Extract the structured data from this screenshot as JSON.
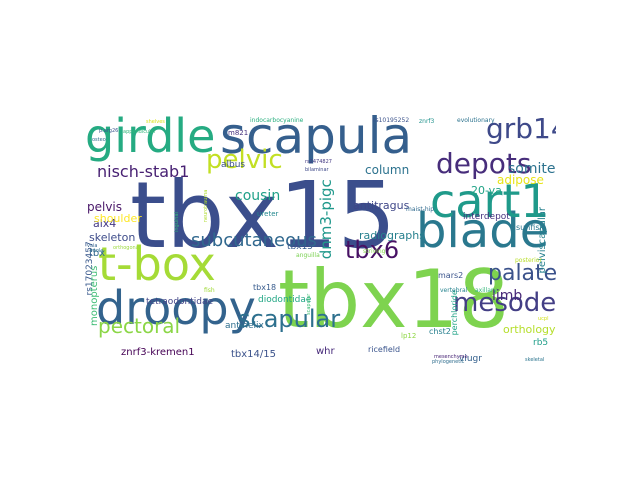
{
  "wordcloud": {
    "words": [
      {
        "text": "tbx15",
        "color": "#3b4e8c"
      },
      {
        "text": "tbx18",
        "color": "#7ed34f"
      },
      {
        "text": "scapula",
        "color": "#355f8d"
      },
      {
        "text": "blade",
        "color": "#2a788e"
      },
      {
        "text": "cart1",
        "color": "#1f9a8a"
      },
      {
        "text": "girdle",
        "color": "#25ab82"
      },
      {
        "text": "droopy",
        "color": "#33638d"
      },
      {
        "text": "t-box",
        "color": "#a5db36"
      },
      {
        "text": "depots",
        "color": "#472d7b"
      },
      {
        "text": "grb14",
        "color": "#3e4989"
      },
      {
        "text": "pelvic",
        "color": "#c2df23"
      },
      {
        "text": "mesoderm",
        "color": "#433e85"
      },
      {
        "text": "scapular",
        "color": "#2d708e"
      },
      {
        "text": "tbx6",
        "color": "#471164"
      },
      {
        "text": "palate",
        "color": "#3b528b"
      },
      {
        "text": "pectoral",
        "color": "#8bd646"
      },
      {
        "text": "subcutaneous",
        "color": "#31688e"
      },
      {
        "text": "nisch-stab1",
        "color": "#482173"
      },
      {
        "text": "dnm3-pigc",
        "color": "#1f988b"
      },
      {
        "text": "somite",
        "color": "#2c728e"
      },
      {
        "text": "cousin",
        "color": "#1fa088"
      },
      {
        "text": "limb",
        "color": "#482878"
      },
      {
        "text": "column",
        "color": "#2c728e"
      },
      {
        "text": "adipose",
        "color": "#e7e419"
      },
      {
        "text": "pelvis",
        "color": "#481668"
      },
      {
        "text": "alx4",
        "color": "#443983"
      },
      {
        "text": "radiographs",
        "color": "#27808e"
      },
      {
        "text": "20-va",
        "color": "#20a386"
      },
      {
        "text": "shoulder",
        "color": "#fde725"
      },
      {
        "text": "antitragus",
        "color": "#3f4788"
      },
      {
        "text": "skeleton",
        "color": "#3e4c8a"
      },
      {
        "text": "orthology",
        "color": "#b5de2b"
      },
      {
        "text": "tbx",
        "color": "#31688e"
      },
      {
        "text": "rs17023457",
        "color": "#38588c"
      },
      {
        "text": "monopterus",
        "color": "#3dbc74"
      },
      {
        "text": "znrf3-kremen1",
        "color": "#440154"
      },
      {
        "text": "tbx14/15",
        "color": "#3b528b"
      },
      {
        "text": "whr",
        "color": "#472a7a"
      },
      {
        "text": "rb5",
        "color": "#1f9e89"
      },
      {
        "text": "viugr",
        "color": "#34608d"
      },
      {
        "text": "interdepot",
        "color": "#46327e"
      },
      {
        "text": "sunfish",
        "color": "#2a768e"
      },
      {
        "text": "pelviscapular",
        "color": "#26818e"
      },
      {
        "text": "tetraodontidae",
        "color": "#414487"
      },
      {
        "text": "antihelix",
        "color": "#2e6e8e"
      },
      {
        "text": "diodontidae",
        "color": "#22a785"
      },
      {
        "text": "tbx15",
        "color": "#375a8c"
      },
      {
        "text": "tbx18",
        "color": "#375b8d"
      },
      {
        "text": "mars2",
        "color": "#3a548c"
      },
      {
        "text": "chst2",
        "color": "#277f8e"
      },
      {
        "text": "perchloride",
        "color": "#1fa287"
      },
      {
        "text": "ricefield",
        "color": "#3a548c"
      },
      {
        "text": "lp12",
        "color": "#8fd744"
      },
      {
        "text": "albus",
        "color": "#3c508b"
      },
      {
        "text": "m821",
        "color": "#46337f"
      },
      {
        "text": "ureter",
        "color": "#23888e"
      },
      {
        "text": "striving",
        "color": "#84d44b"
      },
      {
        "text": "anguilla",
        "color": "#7ad151"
      },
      {
        "text": "vertebral",
        "color": "#25838e"
      },
      {
        "text": "axillary",
        "color": "#35b779"
      },
      {
        "text": "posterior",
        "color": "#b8de29"
      },
      {
        "text": "skeletal",
        "color": "#2b748e"
      },
      {
        "text": "phylogenetic",
        "color": "#2e6d8e"
      },
      {
        "text": "mesenchyme",
        "color": "#482576"
      },
      {
        "text": "scapular",
        "color": "#3dbc74"
      },
      {
        "text": "ucpl",
        "color": "#d2e21b"
      },
      {
        "text": "fish",
        "color": "#a0da39"
      },
      {
        "text": "maist-hip",
        "color": "#306a8e"
      },
      {
        "text": "indocarbocyanine",
        "color": "#29af7f"
      },
      {
        "text": "evolutionary",
        "color": "#2c738e"
      },
      {
        "text": "rs10195252",
        "color": "#3b528b"
      },
      {
        "text": "znrf3",
        "color": "#20928c"
      },
      {
        "text": "shelves",
        "color": "#d8e219"
      },
      {
        "text": "p.arg26",
        "color": "#39558c"
      },
      {
        "text": "appendicular",
        "color": "#32b67a"
      },
      {
        "text": "mola",
        "color": "#2e6f8e"
      },
      {
        "text": "rs2474827",
        "color": "#443983"
      },
      {
        "text": "bilaminar",
        "color": "#3e4989"
      },
      {
        "text": "neurotrauma",
        "color": "#b0dd2f"
      },
      {
        "text": "orthogonal",
        "color": "#9bd93c"
      },
      {
        "text": "inguinal",
        "color": "#35b779"
      },
      {
        "text": "osteo",
        "color": "#2f6c8e"
      },
      {
        "text": "vaia",
        "color": "#34618d"
      }
    ]
  }
}
